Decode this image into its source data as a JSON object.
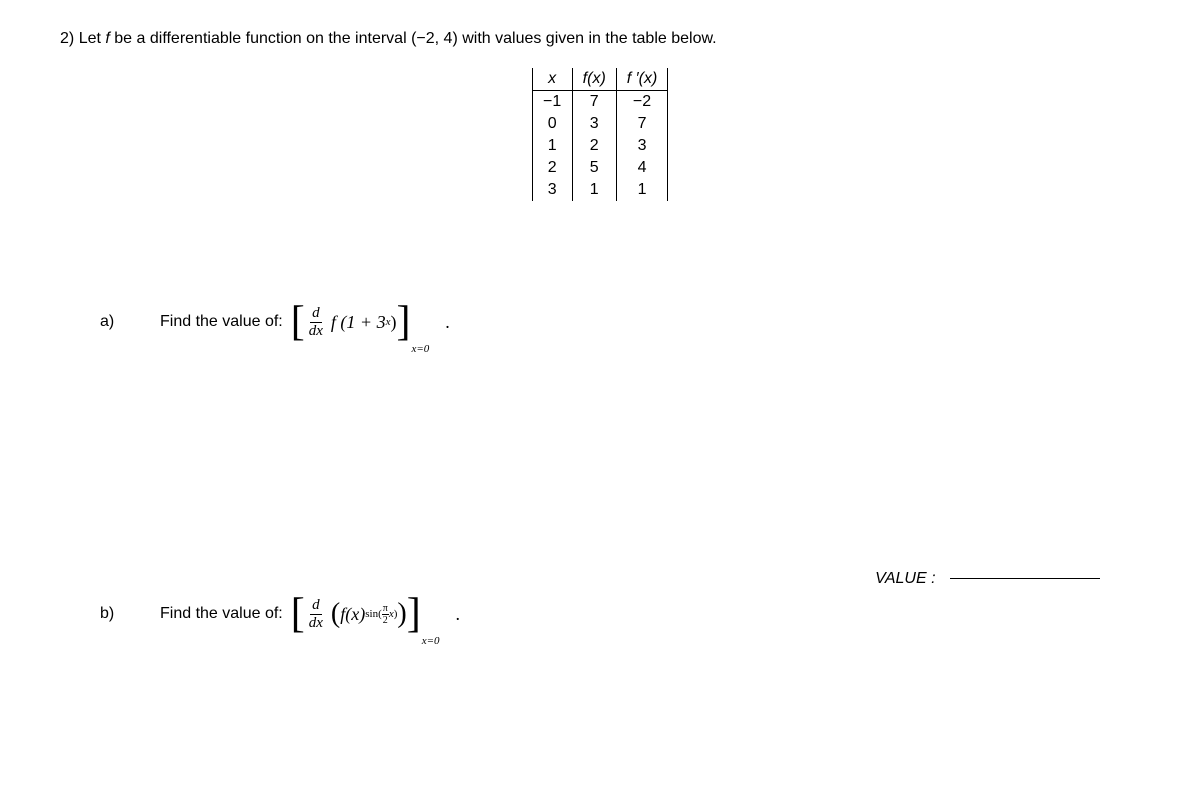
{
  "problem": {
    "number": "2)",
    "text_before_f": "Let ",
    "f_var": "f",
    "text_after_f": " be a differentiable function on the interval ",
    "interval": "(−2, 4)",
    "text_end": " with values given in the table below."
  },
  "table": {
    "headers": {
      "x": "x",
      "fx": "f(x)",
      "fpx": "f ′(x)"
    },
    "rows": [
      {
        "x": "−1",
        "fx": "7",
        "fpx": "−2"
      },
      {
        "x": "0",
        "fx": "3",
        "fpx": "7"
      },
      {
        "x": "1",
        "fx": "2",
        "fpx": "3"
      },
      {
        "x": "2",
        "fx": "5",
        "fpx": "4"
      },
      {
        "x": "3",
        "fx": "1",
        "fpx": "1"
      }
    ]
  },
  "part_a": {
    "label": "a)",
    "prompt": "Find the value of:",
    "expr": {
      "d": "d",
      "dx": "dx",
      "func": "f (1 + 3",
      "sup_x": "x",
      "close": ")",
      "sub": "x=0"
    }
  },
  "part_b": {
    "label": "b)",
    "prompt": "Find the value of:",
    "expr": {
      "d": "d",
      "dx": "dx",
      "open_paren": "(",
      "f": "f",
      "x_arg": "(x)",
      "sin": "sin",
      "pi": "π",
      "two": "2",
      "x": "x",
      "close_paren": ")",
      "close_sup": ")",
      "sub": "x=0"
    }
  },
  "value_label": "VALUE :"
}
